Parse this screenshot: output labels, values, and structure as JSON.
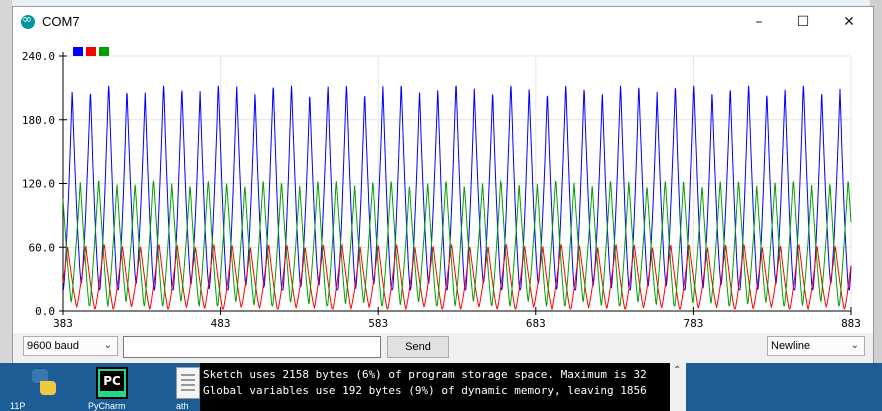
{
  "window": {
    "title": "COM7",
    "minimize": "–",
    "maximize": "☐",
    "close": "✕"
  },
  "plot": {
    "legend_colors": [
      "#0000ff",
      "#ff0000",
      "#00a000"
    ]
  },
  "chart_data": {
    "type": "line",
    "title": "",
    "xlabel": "",
    "ylabel": "",
    "x_ticks": [
      "383",
      "483",
      "583",
      "683",
      "783",
      "883"
    ],
    "y_ticks": [
      "0.0",
      "60.0",
      "120.0",
      "180.0",
      "240.0"
    ],
    "xlim": [
      383,
      883
    ],
    "ylim": [
      0,
      240
    ],
    "grid": true,
    "legend": "top-left",
    "series": [
      {
        "color": "#0000ff",
        "min": 20,
        "max": 212,
        "period": 11.6
      },
      {
        "color": "#ff0000",
        "min": 2,
        "max": 62,
        "period": 11.6
      },
      {
        "color": "#00a000",
        "min": 5,
        "max": 122,
        "period": 11.6
      }
    ]
  },
  "controls": {
    "baud": "9600 baud",
    "input_value": "",
    "send_label": "Send",
    "line_ending": "Newline"
  },
  "console": {
    "line1": "Sketch uses 2158 bytes (6%) of program storage space. Maximum is 32",
    "line2": "Global variables use 192 bytes (9%) of dynamic memory, leaving 1856"
  },
  "desktop": {
    "icon1_label": "11P",
    "icon2_label": "PyCharm",
    "icon3_label": "ath"
  }
}
